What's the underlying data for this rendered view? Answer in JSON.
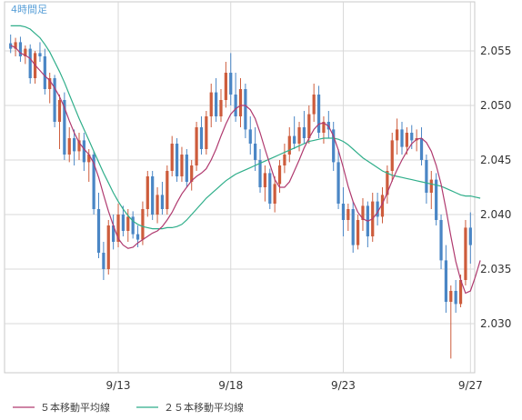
{
  "timeframe_label": "4時間足",
  "legend": {
    "ma5_label": "５本移動平均線",
    "ma25_label": "２５本移動平均線"
  },
  "colors": {
    "up": "#cd5c3c",
    "down": "#4a86c5",
    "ma5": "#b03a6f",
    "ma25": "#2fae8a",
    "grid": "#d8d8d8",
    "frame": "#c8c8c8",
    "label": "#5aa0d8"
  },
  "chart_data": {
    "type": "candlestick",
    "x_ticks": [
      "9/13",
      "9/18",
      "9/23",
      "9/27"
    ],
    "x_tick_index": [
      22,
      45,
      68,
      94
    ],
    "y_ticks": [
      2.03,
      2.035,
      2.04,
      2.045,
      2.05,
      2.055
    ],
    "ylim": [
      2.0255,
      2.0595
    ],
    "series": [
      {
        "name": "５本移動平均線",
        "values": [
          2.0555,
          2.0553,
          2.0548,
          2.0546,
          2.0543,
          2.0537,
          2.0532,
          2.0527,
          2.0523,
          2.0516,
          2.0508,
          2.0498,
          2.0486,
          2.0475,
          2.0466,
          2.046,
          2.0455,
          2.0447,
          2.0434,
          2.0418,
          2.0403,
          2.039,
          2.0378,
          2.0372,
          2.0369,
          2.037,
          2.0374,
          2.0377,
          2.038,
          2.0383,
          2.0385,
          2.0389,
          2.0395,
          2.0402,
          2.0411,
          2.0419,
          2.0425,
          2.0431,
          2.0435,
          2.0438,
          2.0442,
          2.045,
          2.046,
          2.0472,
          2.0483,
          2.0492,
          2.0497,
          2.05,
          2.05,
          2.0496,
          2.0488,
          2.0475,
          2.046,
          2.0446,
          2.0432,
          2.0425,
          2.0425,
          2.043,
          2.044,
          2.045,
          2.0461,
          2.047,
          2.0478,
          2.0483,
          2.0484,
          2.0481,
          2.0472,
          2.0459,
          2.0443,
          2.0426,
          2.0412,
          2.0402,
          2.0396,
          2.0394,
          2.0396,
          2.0402,
          2.041,
          2.042,
          2.0431,
          2.0441,
          2.045,
          2.0458,
          2.0465,
          2.0469,
          2.047,
          2.0466,
          2.0458,
          2.0445,
          2.0428,
          2.0405,
          2.038,
          2.0357,
          2.034,
          2.0328,
          2.033,
          2.0343,
          2.0358
        ]
      },
      {
        "name": "２５本移動平均線",
        "values": [
          2.0573,
          2.0573,
          2.0573,
          2.0572,
          2.057,
          2.0566,
          2.0562,
          2.0556,
          2.0549,
          2.054,
          2.0531,
          2.0521,
          2.051,
          2.0499,
          2.0488,
          2.0478,
          2.0468,
          2.0458,
          2.0448,
          2.0438,
          2.0429,
          2.042,
          2.0412,
          2.0405,
          2.0399,
          2.0394,
          2.0391,
          2.0389,
          2.0388,
          2.0387,
          2.0387,
          2.0387,
          2.0388,
          2.0388,
          2.0389,
          2.0391,
          2.0395,
          2.04,
          2.0405,
          2.041,
          2.0415,
          2.0419,
          2.0423,
          2.0427,
          2.0431,
          2.0434,
          2.0437,
          2.0439,
          2.0441,
          2.0443,
          2.0445,
          2.0447,
          2.0449,
          2.0451,
          2.0453,
          2.0455,
          2.0457,
          2.0459,
          2.0461,
          2.0463,
          2.0465,
          2.0467,
          2.0468,
          2.0469,
          2.047,
          2.047,
          2.047,
          2.0469,
          2.0467,
          2.0464,
          2.046,
          2.0456,
          2.0452,
          2.0449,
          2.0446,
          2.0443,
          2.044,
          2.0438,
          2.0436,
          2.0435,
          2.0434,
          2.0433,
          2.0432,
          2.0431,
          2.043,
          2.0429,
          2.0428,
          2.0427,
          2.0426,
          2.0424,
          2.0422,
          2.042,
          2.0418,
          2.0417,
          2.0417,
          2.0416,
          2.0415
        ]
      }
    ],
    "ohlc": {
      "fields": [
        "open",
        "high",
        "low",
        "close"
      ],
      "values": [
        [
          2.0557,
          2.0565,
          2.0548,
          2.0552
        ],
        [
          2.0552,
          2.0562,
          2.0545,
          2.0558
        ],
        [
          2.0558,
          2.0563,
          2.054,
          2.0545
        ],
        [
          2.0545,
          2.0555,
          2.0538,
          2.0552
        ],
        [
          2.0552,
          2.0556,
          2.052,
          2.0525
        ],
        [
          2.0525,
          2.055,
          2.052,
          2.0548
        ],
        [
          2.0548,
          2.0558,
          2.054,
          2.0545
        ],
        [
          2.0545,
          2.0552,
          2.051,
          2.0515
        ],
        [
          2.0515,
          2.053,
          2.0502,
          2.0525
        ],
        [
          2.0525,
          2.0528,
          2.048,
          2.0485
        ],
        [
          2.0485,
          2.051,
          2.046,
          2.0505
        ],
        [
          2.0505,
          2.0512,
          2.045,
          2.0455
        ],
        [
          2.0455,
          2.048,
          2.0448,
          2.047
        ],
        [
          2.047,
          2.0478,
          2.0445,
          2.0458
        ],
        [
          2.0458,
          2.0475,
          2.045,
          2.0468
        ],
        [
          2.0468,
          2.0475,
          2.044,
          2.0448
        ],
        [
          2.0448,
          2.046,
          2.043,
          2.0455
        ],
        [
          2.0455,
          2.0458,
          2.04,
          2.0405
        ],
        [
          2.0405,
          2.042,
          2.036,
          2.0365
        ],
        [
          2.0365,
          2.0375,
          2.034,
          2.035
        ],
        [
          2.035,
          2.0395,
          2.0345,
          2.039
        ],
        [
          2.039,
          2.04,
          2.0368,
          2.0375
        ],
        [
          2.0375,
          2.041,
          2.037,
          2.04
        ],
        [
          2.04,
          2.0408,
          2.038,
          2.0385
        ],
        [
          2.0385,
          2.0405,
          2.0375,
          2.0398
        ],
        [
          2.0398,
          2.0403,
          2.0378,
          2.0382
        ],
        [
          2.0382,
          2.039,
          2.037,
          2.0377
        ],
        [
          2.0377,
          2.0412,
          2.0372,
          2.0405
        ],
        [
          2.0405,
          2.044,
          2.0398,
          2.0435
        ],
        [
          2.0435,
          2.044,
          2.0395,
          2.04
        ],
        [
          2.04,
          2.0425,
          2.0392,
          2.0418
        ],
        [
          2.0418,
          2.043,
          2.04,
          2.0405
        ],
        [
          2.0405,
          2.0445,
          2.04,
          2.044
        ],
        [
          2.044,
          2.0472,
          2.0435,
          2.0465
        ],
        [
          2.0465,
          2.047,
          2.043,
          2.0435
        ],
        [
          2.0435,
          2.0462,
          2.043,
          2.0455
        ],
        [
          2.0455,
          2.046,
          2.0425,
          2.043
        ],
        [
          2.043,
          2.045,
          2.0422,
          2.0445
        ],
        [
          2.0445,
          2.0485,
          2.044,
          2.048
        ],
        [
          2.048,
          2.049,
          2.0455,
          2.046
        ],
        [
          2.046,
          2.0495,
          2.0455,
          2.049
        ],
        [
          2.049,
          2.052,
          2.048,
          2.0512
        ],
        [
          2.0512,
          2.0525,
          2.0485,
          2.049
        ],
        [
          2.049,
          2.0515,
          2.0485,
          2.0505
        ],
        [
          2.0505,
          2.054,
          2.0498,
          2.053
        ],
        [
          2.053,
          2.0548,
          2.05,
          2.051
        ],
        [
          2.051,
          2.053,
          2.0485,
          2.049
        ],
        [
          2.049,
          2.0525,
          2.048,
          2.0515
        ],
        [
          2.0515,
          2.052,
          2.047,
          2.0478
        ],
        [
          2.0478,
          2.049,
          2.0455,
          2.0465
        ],
        [
          2.0465,
          2.048,
          2.044,
          2.045
        ],
        [
          2.045,
          2.046,
          2.042,
          2.0425
        ],
        [
          2.0425,
          2.0445,
          2.0412,
          2.0438
        ],
        [
          2.0438,
          2.0442,
          2.0405,
          2.041
        ],
        [
          2.041,
          2.0435,
          2.0402,
          2.0428
        ],
        [
          2.0428,
          2.045,
          2.042,
          2.0445
        ],
        [
          2.0445,
          2.0465,
          2.0438,
          2.0455
        ],
        [
          2.0455,
          2.048,
          2.0448,
          2.0472
        ],
        [
          2.0472,
          2.049,
          2.046,
          2.0465
        ],
        [
          2.0465,
          2.0485,
          2.0458,
          2.048
        ],
        [
          2.048,
          2.0495,
          2.0465,
          2.047
        ],
        [
          2.047,
          2.05,
          2.0465,
          2.0492
        ],
        [
          2.0492,
          2.052,
          2.0485,
          2.051
        ],
        [
          2.051,
          2.0518,
          2.047,
          2.0475
        ],
        [
          2.0475,
          2.049,
          2.0465,
          2.0485
        ],
        [
          2.0485,
          2.0495,
          2.047,
          2.0478
        ],
        [
          2.0478,
          2.0485,
          2.044,
          2.0448
        ],
        [
          2.0448,
          2.046,
          2.0405,
          2.041
        ],
        [
          2.041,
          2.0425,
          2.038,
          2.0395
        ],
        [
          2.0395,
          2.041,
          2.0385,
          2.0405
        ],
        [
          2.0405,
          2.0412,
          2.0365,
          2.0372
        ],
        [
          2.0372,
          2.04,
          2.0368,
          2.0395
        ],
        [
          2.0395,
          2.0415,
          2.0385,
          2.0408
        ],
        [
          2.0408,
          2.0412,
          2.037,
          2.038
        ],
        [
          2.038,
          2.042,
          2.0375,
          2.0412
        ],
        [
          2.0412,
          2.042,
          2.039,
          2.0398
        ],
        [
          2.0398,
          2.0425,
          2.0392,
          2.0418
        ],
        [
          2.0418,
          2.0445,
          2.041,
          2.044
        ],
        [
          2.044,
          2.0475,
          2.043,
          2.0468
        ],
        [
          2.0468,
          2.0488,
          2.0455,
          2.0478
        ],
        [
          2.0478,
          2.0485,
          2.0455,
          2.0462
        ],
        [
          2.0462,
          2.048,
          2.0455,
          2.0475
        ],
        [
          2.0475,
          2.0482,
          2.046,
          2.0468
        ],
        [
          2.0468,
          2.0478,
          2.0458,
          2.047
        ],
        [
          2.047,
          2.048,
          2.0445,
          2.045
        ],
        [
          2.045,
          2.0455,
          2.041,
          2.042
        ],
        [
          2.042,
          2.044,
          2.0405,
          2.0432
        ],
        [
          2.0432,
          2.0438,
          2.039,
          2.0395
        ],
        [
          2.0395,
          2.04,
          2.035,
          2.0358
        ],
        [
          2.0358,
          2.0372,
          2.031,
          2.032
        ],
        [
          2.032,
          2.0335,
          2.0268,
          2.033
        ],
        [
          2.033,
          2.034,
          2.031,
          2.0318
        ],
        [
          2.0318,
          2.0345,
          2.0315,
          2.034
        ],
        [
          2.034,
          2.0395,
          2.0335,
          2.0388
        ],
        [
          2.0388,
          2.0402,
          2.0355,
          2.0372
        ]
      ]
    }
  }
}
